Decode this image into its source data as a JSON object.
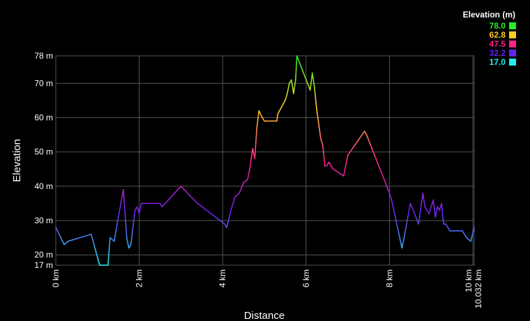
{
  "chart_data": {
    "type": "line",
    "xlabel": "Distance",
    "ylabel": "Elevation",
    "x_unit": "km",
    "y_unit": "m",
    "xlim": [
      0,
      10.032
    ],
    "ylim": [
      17,
      78
    ],
    "grid": true,
    "x_ticks": [
      {
        "value": 0,
        "label": "0 km"
      },
      {
        "value": 2,
        "label": "2 km"
      },
      {
        "value": 4,
        "label": "4 km"
      },
      {
        "value": 6,
        "label": "6 km"
      },
      {
        "value": 8,
        "label": "8 km"
      },
      {
        "value": 10,
        "label": "10 km"
      },
      {
        "value": 10.032,
        "label": "10.032 km"
      }
    ],
    "y_ticks": [
      {
        "value": 17,
        "label": "17 m"
      },
      {
        "value": 20,
        "label": "20 m"
      },
      {
        "value": 30,
        "label": "30 m"
      },
      {
        "value": 40,
        "label": "40 m"
      },
      {
        "value": 50,
        "label": "50 m"
      },
      {
        "value": 60,
        "label": "60 m"
      },
      {
        "value": 70,
        "label": "70 m"
      },
      {
        "value": 78,
        "label": "78 m"
      }
    ],
    "legend": {
      "title": "Elevation (m)",
      "placement": "top-right",
      "entries": [
        {
          "label": "78.0",
          "color": "#22ee22"
        },
        {
          "label": "62.8",
          "color": "#ffcc22"
        },
        {
          "label": "47.5",
          "color": "#ff2288"
        },
        {
          "label": "32.2",
          "color": "#6622ee"
        },
        {
          "label": "17.0",
          "color": "#22eeee"
        }
      ]
    },
    "series": [
      {
        "x": [
          0,
          0.2,
          0.3,
          0.85,
          1.05,
          1.25,
          1.3,
          1.4,
          1.5,
          1.62,
          1.7,
          1.75,
          1.8,
          1.9,
          1.95,
          2.0,
          2.05,
          2.5,
          2.55,
          3.0,
          3.4,
          4.05,
          4.1,
          4.2,
          4.3,
          4.4,
          4.5,
          4.6,
          4.65,
          4.72,
          4.77,
          4.82,
          4.87,
          4.95,
          5.0,
          5.3,
          5.32,
          5.5,
          5.55,
          5.6,
          5.65,
          5.7,
          5.75,
          5.78,
          6.1,
          6.15,
          6.2,
          6.25,
          6.35,
          6.4,
          6.45,
          6.5,
          6.55,
          6.6,
          6.65,
          6.9,
          7.0,
          7.4,
          7.45,
          8.0,
          8.05,
          8.3,
          8.35,
          8.5,
          8.7,
          8.8,
          8.85,
          8.95,
          9.0,
          9.05,
          9.1,
          9.15,
          9.2,
          9.25,
          9.27,
          9.3,
          9.35,
          9.45,
          9.5,
          9.7,
          9.75,
          9.85,
          9.95,
          10.032
        ],
        "y": [
          28,
          23,
          24,
          26,
          17,
          17,
          25,
          24,
          31,
          39,
          25,
          22,
          23,
          33,
          34,
          32,
          35,
          35,
          34,
          40,
          35,
          29,
          28,
          33,
          37,
          38,
          41,
          42,
          45,
          51,
          48,
          57,
          62,
          60,
          59,
          59,
          61,
          65,
          67,
          70,
          71,
          67,
          71,
          78,
          68,
          73,
          69,
          63,
          54,
          52,
          46,
          46,
          47,
          46,
          45,
          43,
          49,
          56,
          55,
          38,
          36,
          22,
          25,
          35,
          29,
          38,
          34,
          32,
          34,
          36,
          31,
          34,
          33,
          35,
          32,
          29,
          29,
          27,
          27,
          27,
          27,
          25,
          24,
          28
        ]
      }
    ]
  }
}
